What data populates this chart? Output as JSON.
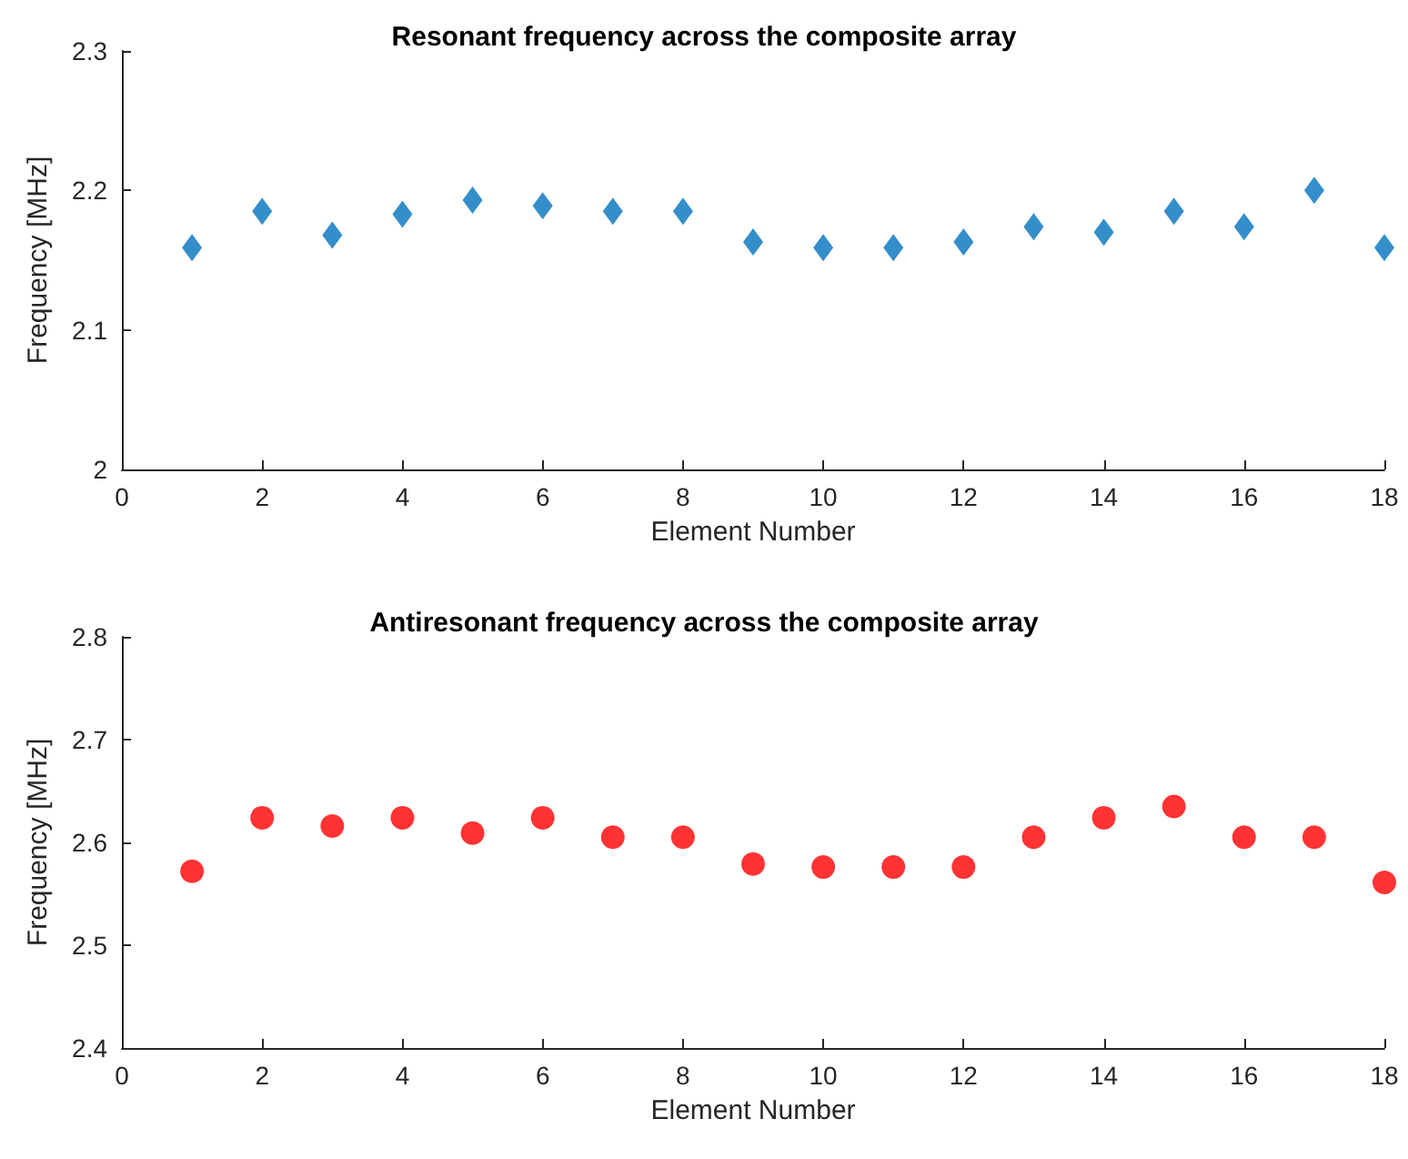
{
  "chart_data": [
    {
      "type": "scatter",
      "title": "Resonant frequency across the composite array",
      "xlabel": "Element Number",
      "ylabel": "Frequency [MHz]",
      "x": [
        1,
        2,
        3,
        4,
        5,
        6,
        7,
        8,
        9,
        10,
        11,
        12,
        13,
        14,
        15,
        16,
        17,
        18
      ],
      "values": [
        2.159,
        2.185,
        2.168,
        2.183,
        2.193,
        2.189,
        2.185,
        2.185,
        2.163,
        2.159,
        2.159,
        2.163,
        2.174,
        2.17,
        2.185,
        2.174,
        2.2,
        2.159
      ],
      "color": "#0072bd",
      "marker": "diamond",
      "xlim": [
        0,
        18
      ],
      "xticks": [
        0,
        2,
        4,
        6,
        8,
        10,
        12,
        14,
        16,
        18
      ],
      "ylim": [
        2,
        2.3
      ],
      "yticks": [
        2,
        2.1,
        2.2,
        2.3
      ]
    },
    {
      "type": "scatter",
      "title": "Antiresonant frequency across the composite array",
      "xlabel": "Element Number",
      "ylabel": "Frequency [MHz]",
      "x": [
        1,
        2,
        3,
        4,
        5,
        6,
        7,
        8,
        9,
        10,
        11,
        12,
        13,
        14,
        15,
        16,
        17,
        18
      ],
      "values": [
        2.572,
        2.624,
        2.616,
        2.624,
        2.609,
        2.624,
        2.605,
        2.605,
        2.579,
        2.576,
        2.576,
        2.576,
        2.605,
        2.624,
        2.635,
        2.605,
        2.605,
        2.561
      ],
      "color": "#ff0000",
      "marker": "circle",
      "xlim": [
        0,
        18
      ],
      "xticks": [
        0,
        2,
        4,
        6,
        8,
        10,
        12,
        14,
        16,
        18
      ],
      "ylim": [
        2.4,
        2.8
      ],
      "yticks": [
        2.4,
        2.5,
        2.6,
        2.7,
        2.8
      ]
    }
  ]
}
